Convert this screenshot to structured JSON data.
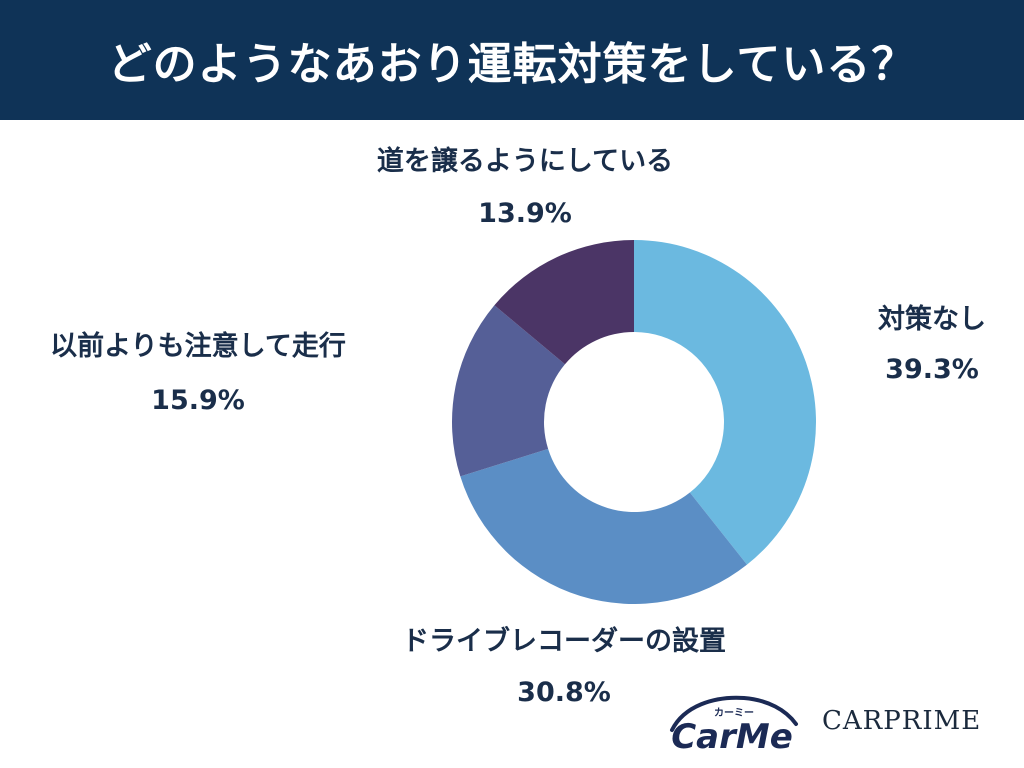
{
  "header": {
    "title": "どのようなあおり運転対策をしている？"
  },
  "colors": {
    "header_bg": "#0f3357",
    "label_text": "#1a2e4a"
  },
  "chart_data": {
    "type": "pie",
    "donut": true,
    "title": "どのようなあおり運転対策をしている？",
    "slices": [
      {
        "label": "対策なし",
        "value": 39.3,
        "value_label": "39.3%",
        "color": "#6bb9e0"
      },
      {
        "label": "ドライブレコーダーの設置",
        "value": 30.8,
        "value_label": "30.8%",
        "color": "#5b8ec5"
      },
      {
        "label": "以前よりも注意して走行",
        "value": 15.9,
        "value_label": "15.9%",
        "color": "#555f97"
      },
      {
        "label": "道を譲るようにしている",
        "value": 13.9,
        "value_label": "13.9%",
        "color": "#4b3566"
      }
    ]
  },
  "logos": {
    "carme_text": "CarMe",
    "carme_kana": "カーミー",
    "carprime_text": "CARPRIME"
  }
}
